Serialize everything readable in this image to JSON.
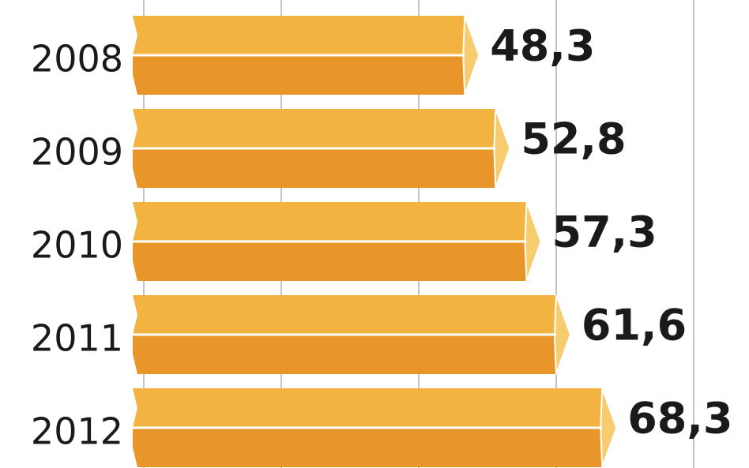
{
  "chart_data": {
    "type": "bar",
    "orientation": "horizontal",
    "categories": [
      "2008",
      "2009",
      "2010",
      "2011",
      "2012"
    ],
    "values": [
      48.3,
      52.8,
      57.3,
      61.6,
      68.3
    ],
    "value_labels": [
      "48,3",
      "52,8",
      "57,3",
      "61,6",
      "68,3"
    ],
    "color": "#f2b340",
    "xlim": [
      0,
      80
    ],
    "xticks": [
      0,
      20,
      40,
      60,
      80
    ],
    "grid": true
  }
}
